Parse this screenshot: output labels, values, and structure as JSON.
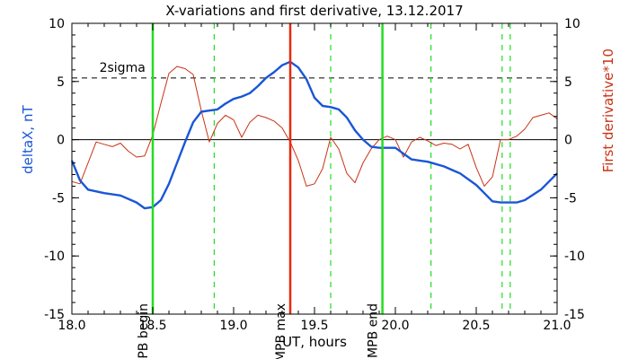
{
  "chart_data": {
    "type": "line",
    "title": "X-variations and first derivative, 13.12.2017",
    "xlabel": "UT, hours",
    "ylabel_left": "deltaX, nT",
    "ylabel_right": "First derivative*10",
    "xlim": [
      18.0,
      21.0
    ],
    "ylim": [
      -15,
      10
    ],
    "xticks": [
      "18.0",
      "18.5",
      "19.0",
      "19.5",
      "20.0",
      "20.5",
      "21.0"
    ],
    "yticks": [
      "10",
      "5",
      "0",
      "-5",
      "-10",
      "-15"
    ],
    "colors": {
      "deltaX": "#1a56d6",
      "derivative": "#c83214",
      "mpb_boundary": "#22dd22",
      "mpb_max": "#e8280c",
      "secondary": "#22dd22"
    },
    "sigma": {
      "label": "2sigma",
      "value": 5.3
    },
    "markers": [
      {
        "label": "MPB begin",
        "x": 18.5,
        "color": "#22dd22"
      },
      {
        "label": "MPB max",
        "x": 19.35,
        "color": "#e8280c"
      },
      {
        "label": "MPB end",
        "x": 19.92,
        "color": "#22dd22"
      }
    ],
    "dashed_markers": [
      18.88,
      19.6,
      20.22,
      20.66,
      20.71
    ],
    "series": [
      {
        "key": "deltaX",
        "x": [
          18.0,
          18.05,
          18.1,
          18.2,
          18.3,
          18.4,
          18.45,
          18.5,
          18.55,
          18.6,
          18.65,
          18.7,
          18.75,
          18.8,
          18.85,
          18.9,
          18.95,
          19.0,
          19.05,
          19.1,
          19.15,
          19.2,
          19.25,
          19.3,
          19.35,
          19.4,
          19.45,
          19.5,
          19.55,
          19.6,
          19.65,
          19.7,
          19.75,
          19.8,
          19.85,
          19.9,
          19.95,
          20.0,
          20.05,
          20.1,
          20.15,
          20.2,
          20.3,
          20.4,
          20.5,
          20.55,
          20.6,
          20.65,
          20.7,
          20.75,
          20.8,
          20.9,
          21.0
        ],
        "values": [
          -1.8,
          -3.5,
          -4.3,
          -4.6,
          -4.8,
          -5.4,
          -5.9,
          -5.8,
          -5.2,
          -3.8,
          -2.0,
          -0.2,
          1.5,
          2.4,
          2.5,
          2.6,
          3.1,
          3.5,
          3.7,
          4.0,
          4.6,
          5.3,
          5.8,
          6.4,
          6.7,
          6.2,
          5.2,
          3.6,
          2.9,
          2.8,
          2.6,
          1.9,
          0.8,
          0.0,
          -0.6,
          -0.7,
          -0.7,
          -0.7,
          -1.2,
          -1.7,
          -1.8,
          -1.9,
          -2.3,
          -2.9,
          -3.9,
          -4.6,
          -5.3,
          -5.4,
          -5.4,
          -5.4,
          -5.2,
          -4.3,
          -2.9
        ]
      },
      {
        "key": "derivative",
        "x": [
          18.0,
          18.05,
          18.1,
          18.15,
          18.2,
          18.25,
          18.3,
          18.35,
          18.4,
          18.45,
          18.5,
          18.55,
          18.6,
          18.65,
          18.7,
          18.75,
          18.8,
          18.85,
          18.9,
          18.95,
          19.0,
          19.05,
          19.1,
          19.15,
          19.2,
          19.25,
          19.3,
          19.35,
          19.4,
          19.45,
          19.5,
          19.55,
          19.6,
          19.65,
          19.7,
          19.75,
          19.8,
          19.85,
          19.9,
          19.95,
          20.0,
          20.05,
          20.1,
          20.15,
          20.2,
          20.25,
          20.3,
          20.35,
          20.4,
          20.45,
          20.5,
          20.55,
          20.6,
          20.65,
          20.7,
          20.75,
          20.8,
          20.85,
          20.9,
          20.95,
          21.0
        ],
        "values": [
          -3.6,
          -3.8,
          -2.0,
          -0.2,
          -0.4,
          -0.6,
          -0.3,
          -1.0,
          -1.5,
          -1.4,
          0.4,
          3.1,
          5.7,
          6.3,
          6.1,
          5.6,
          2.5,
          -0.2,
          1.4,
          2.1,
          1.7,
          0.2,
          1.5,
          2.1,
          1.9,
          1.6,
          1.0,
          -0.2,
          -1.8,
          -4.0,
          -3.8,
          -2.5,
          0.2,
          -0.8,
          -2.9,
          -3.7,
          -2.0,
          -0.8,
          0.0,
          0.3,
          0.0,
          -1.5,
          -0.2,
          0.2,
          -0.1,
          -0.5,
          -0.3,
          -0.4,
          -0.8,
          -0.4,
          -2.4,
          -4.0,
          -3.2,
          0.0,
          0.0,
          0.3,
          0.9,
          1.9,
          2.1,
          2.3,
          1.8
        ]
      }
    ]
  }
}
